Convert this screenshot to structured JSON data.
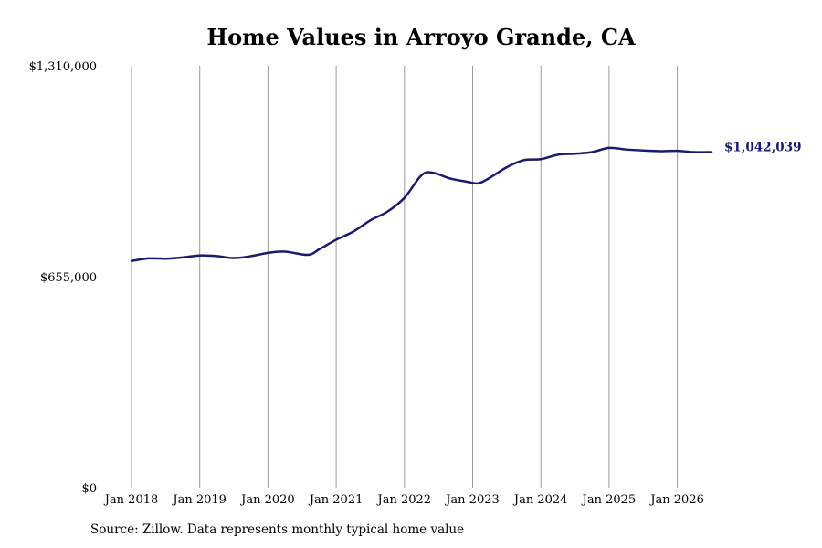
{
  "chart_data": {
    "type": "line",
    "title": "Home Values in Arroyo Grande, CA",
    "xlabel": "",
    "ylabel": "",
    "source": "Source: Zillow. Data represents monthly typical home value",
    "y_ticks": [
      {
        "value": 0,
        "label": "$0"
      },
      {
        "value": 655000,
        "label": "$655,000"
      },
      {
        "value": 1310000,
        "label": "$1,310,000"
      }
    ],
    "ylim": [
      0,
      1310000
    ],
    "x_ticks": [
      {
        "value": "2018-01",
        "label": "Jan 2018"
      },
      {
        "value": "2019-01",
        "label": "Jan 2019"
      },
      {
        "value": "2020-01",
        "label": "Jan 2020"
      },
      {
        "value": "2021-01",
        "label": "Jan 2021"
      },
      {
        "value": "2022-01",
        "label": "Jan 2022"
      },
      {
        "value": "2023-01",
        "label": "Jan 2023"
      },
      {
        "value": "2024-01",
        "label": "Jan 2024"
      },
      {
        "value": "2025-01",
        "label": "Jan 2025"
      },
      {
        "value": "2026-01",
        "label": "Jan 2026"
      }
    ],
    "xlim": [
      "2018-01",
      "2026-07"
    ],
    "grid": {
      "vertical": true,
      "horizontal": false
    },
    "line_color": "#1a1a6e",
    "end_label": "$1,042,039",
    "series": [
      {
        "values": [
          {
            "x": "2018-01",
            "y": 704000
          },
          {
            "x": "2018-04",
            "y": 712000
          },
          {
            "x": "2018-07",
            "y": 711000
          },
          {
            "x": "2018-10",
            "y": 715000
          },
          {
            "x": "2019-01",
            "y": 721000
          },
          {
            "x": "2019-04",
            "y": 719000
          },
          {
            "x": "2019-07",
            "y": 713000
          },
          {
            "x": "2019-10",
            "y": 719000
          },
          {
            "x": "2020-01",
            "y": 729000
          },
          {
            "x": "2020-04",
            "y": 733000
          },
          {
            "x": "2020-08",
            "y": 723000
          },
          {
            "x": "2020-10",
            "y": 740000
          },
          {
            "x": "2021-01",
            "y": 770000
          },
          {
            "x": "2021-04",
            "y": 795000
          },
          {
            "x": "2021-07",
            "y": 830000
          },
          {
            "x": "2021-10",
            "y": 857000
          },
          {
            "x": "2022-01",
            "y": 900000
          },
          {
            "x": "2022-04",
            "y": 970000
          },
          {
            "x": "2022-06",
            "y": 978000
          },
          {
            "x": "2022-09",
            "y": 960000
          },
          {
            "x": "2022-12",
            "y": 950000
          },
          {
            "x": "2023-02",
            "y": 945000
          },
          {
            "x": "2023-04",
            "y": 962000
          },
          {
            "x": "2023-07",
            "y": 995000
          },
          {
            "x": "2023-10",
            "y": 1017000
          },
          {
            "x": "2024-01",
            "y": 1020000
          },
          {
            "x": "2024-04",
            "y": 1034000
          },
          {
            "x": "2024-07",
            "y": 1037000
          },
          {
            "x": "2024-10",
            "y": 1042000
          },
          {
            "x": "2025-01",
            "y": 1055000
          },
          {
            "x": "2025-04",
            "y": 1050000
          },
          {
            "x": "2025-07",
            "y": 1047000
          },
          {
            "x": "2025-10",
            "y": 1045000
          },
          {
            "x": "2026-01",
            "y": 1046000
          },
          {
            "x": "2026-04",
            "y": 1042000
          },
          {
            "x": "2026-07",
            "y": 1042039
          }
        ]
      }
    ]
  }
}
